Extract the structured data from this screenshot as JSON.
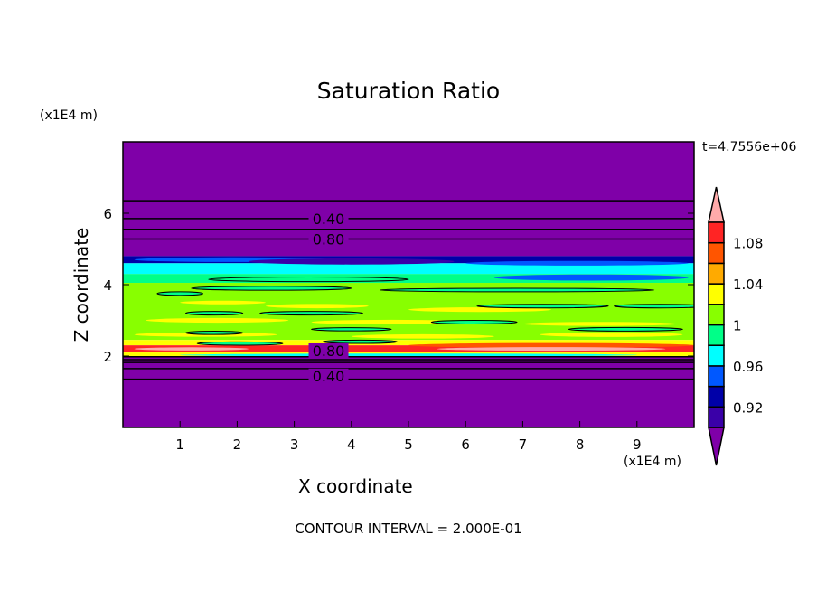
{
  "chart_data": {
    "type": "heatmap",
    "title": "Saturation Ratio",
    "xlabel": "X coordinate",
    "ylabel": "Z coordinate",
    "x_unit": "(x1E4 m)",
    "y_unit": "(x1E4 m)",
    "xlim": [
      0,
      10
    ],
    "ylim": [
      0,
      8
    ],
    "x_ticks": [
      1,
      2,
      3,
      4,
      5,
      6,
      7,
      8,
      9
    ],
    "y_ticks": [
      2,
      4,
      6
    ],
    "time_label": "t=4.7556e+06",
    "footer": "CONTOUR INTERVAL = 2.000E-01",
    "colorbar": {
      "levels": [
        0.9,
        0.92,
        0.94,
        0.96,
        0.98,
        1.0,
        1.02,
        1.04,
        1.06,
        1.08,
        1.1
      ],
      "tick_labels": [
        "0.92",
        "0.96",
        "1",
        "1.04",
        "1.08"
      ],
      "tick_values": [
        0.92,
        0.96,
        1.0,
        1.04,
        1.08
      ],
      "colors": [
        "#3a00a8",
        "#0000a8",
        "#0058ff",
        "#00ffff",
        "#00ff88",
        "#88ff00",
        "#ffff00",
        "#ffaa00",
        "#ff5500",
        "#ff2424"
      ],
      "under_color": "#7f00a8",
      "over_color": "#ffaaaa",
      "extend": "both"
    },
    "contour_labels": [
      {
        "text": "0.40",
        "x": 3.6,
        "z": 5.85
      },
      {
        "text": "0.80",
        "x": 3.6,
        "z": 5.28
      },
      {
        "text": "0.80",
        "x": 3.6,
        "z": 1.95
      },
      {
        "text": "0.40",
        "x": 3.6,
        "z": 1.65
      }
    ],
    "contour_lines_z": [
      6.35,
      5.85,
      5.55,
      5.28,
      1.98,
      1.9,
      1.82,
      1.65,
      1.35
    ],
    "field_bands": [
      {
        "z_from": 4.8,
        "z_to": 8.0,
        "value": "<0.90"
      },
      {
        "z_from": 4.6,
        "z_to": 4.8,
        "value": "0.92-0.96"
      },
      {
        "z_from": 4.3,
        "z_to": 4.6,
        "value": "0.96-0.98"
      },
      {
        "z_from": 4.05,
        "z_to": 4.3,
        "value": "0.98-1.00"
      },
      {
        "z_from": 2.45,
        "z_to": 4.05,
        "value": "1.00-1.02"
      },
      {
        "z_from": 2.3,
        "z_to": 2.45,
        "value": "1.02-1.06"
      },
      {
        "z_from": 2.1,
        "z_to": 2.3,
        "value": "1.06-1.10+"
      },
      {
        "z_from": 2.0,
        "z_to": 2.1,
        "value": "1.02-1.04"
      },
      {
        "z_from": 0,
        "z_to": 2.0,
        "value": "<0.90"
      }
    ]
  }
}
